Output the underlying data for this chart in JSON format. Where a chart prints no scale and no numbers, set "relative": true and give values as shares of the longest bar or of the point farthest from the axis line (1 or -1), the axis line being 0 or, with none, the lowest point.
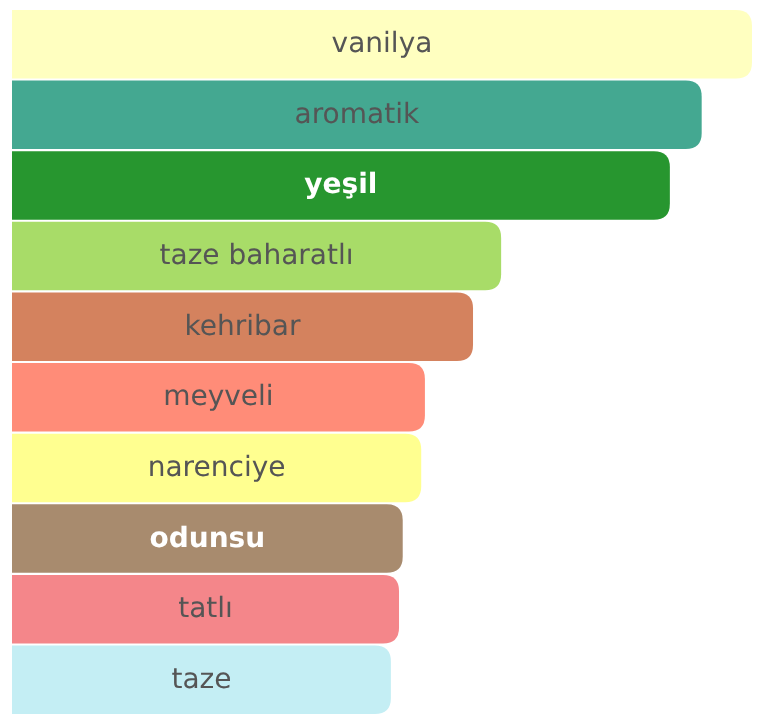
{
  "chart_data": {
    "type": "bar",
    "orientation": "horizontal",
    "relative": true,
    "categories": [
      "vanilya",
      "aromatik",
      "yeşil",
      "taze baharatlı",
      "kehribar",
      "meyveli",
      "narenciye",
      "odunsu",
      "tatlı",
      "taze"
    ],
    "values": [
      1,
      0.932,
      0.889,
      0.661,
      0.623,
      0.558,
      0.553,
      0.528,
      0.523,
      0.512
    ],
    "colors": [
      "#ffffc0",
      "#44a891",
      "#27962f",
      "#a8dc68",
      "#d4825e",
      "#ff8c78",
      "#ffff90",
      "#a88b6e",
      "#f4868a",
      "#c4eef4"
    ]
  }
}
